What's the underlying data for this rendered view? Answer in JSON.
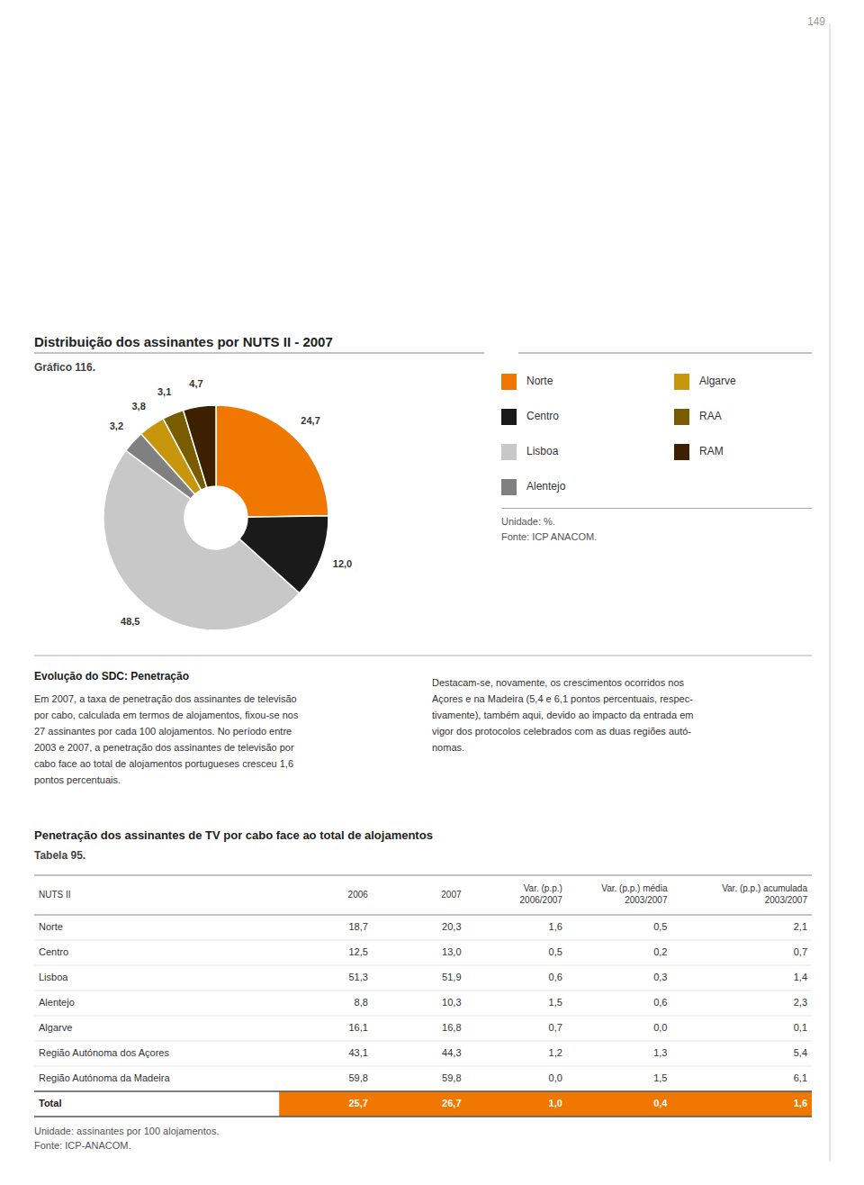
{
  "page_number": "149",
  "chart_data": {
    "type": "pie",
    "title": "Distribuição dos assinantes por NUTS II - 2007",
    "subtitle": "Gráfico 116.",
    "categories": [
      "Norte",
      "Centro",
      "Lisboa",
      "Alentejo",
      "Algarve",
      "RAA",
      "RAM"
    ],
    "values": [
      24.7,
      12.0,
      48.5,
      3.2,
      3.8,
      3.1,
      4.7
    ],
    "value_labels": [
      "24,7",
      "12,0",
      "48,5",
      "3,2",
      "3,8",
      "3,1",
      "4,7"
    ],
    "colors": [
      "#f07800",
      "#1a1a1a",
      "#c8c8c8",
      "#808080",
      "#c8960c",
      "#7a5c00",
      "#3c2000"
    ],
    "data_labels": true,
    "legend": "right",
    "unit": "Unidade: %.",
    "source": "Fonte: ICP ANACOM."
  },
  "text": {
    "left_title": "Evolução do SDC: Penetração",
    "left_body": "Em 2007, a taxa de penetração dos assinantes de televisão\npor cabo, calculada em termos de alojamentos, fixou-se nos\n27 assinantes por cada 100 alojamentos. No período entre\n2003 e 2007, a penetração dos assinantes de televisão por\ncabo face ao total de alojamentos portugueses cresceu 1,6\npontos percentuais.",
    "right_body": "Destacam-se, novamente, os crescimentos ocorridos nos\nAçores e na Madeira (5,4 e 6,1 pontos percentuais, respec-\ntivamente), também aqui, devido ao impacto da entrada em\nvigor dos protocolos celebrados com as duas regiões autó-\nnomas."
  },
  "table": {
    "title": "Penetração dos assinantes de TV por cabo face ao total de alojamentos",
    "subtitle": "Tabela 95.",
    "color": "#f07800",
    "headers": [
      "NUTS II",
      "2006",
      "2007",
      "Var. (p.p.)\n2006/2007",
      "Var. (p.p.) média\n2003/2007",
      "Var. (p.p.) acumulada\n2003/2007"
    ],
    "rows": [
      [
        "Norte",
        "18,7",
        "20,3",
        "1,6",
        "0,5",
        "2,1"
      ],
      [
        "Centro",
        "12,5",
        "13,0",
        "0,5",
        "0,2",
        "0,7"
      ],
      [
        "Lisboa",
        "51,3",
        "51,9",
        "0,6",
        "0,3",
        "1,4"
      ],
      [
        "Alentejo",
        "8,8",
        "10,3",
        "1,5",
        "0,6",
        "2,3"
      ],
      [
        "Algarve",
        "16,1",
        "16,8",
        "0,7",
        "0,0",
        "0,1"
      ],
      [
        "Região Autónoma dos Açores",
        "43,1",
        "44,3",
        "1,2",
        "1,3",
        "5,4"
      ],
      [
        "Região Autónoma da Madeira",
        "59,8",
        "59,8",
        "0,0",
        "1,5",
        "6,1"
      ]
    ],
    "total": [
      "Total",
      "25,7",
      "26,7",
      "1,0",
      "0,4",
      "1,6"
    ],
    "unit": "Unidade: assinantes por 100 alojamentos.",
    "source": "Fonte: ICP-ANACOM."
  }
}
